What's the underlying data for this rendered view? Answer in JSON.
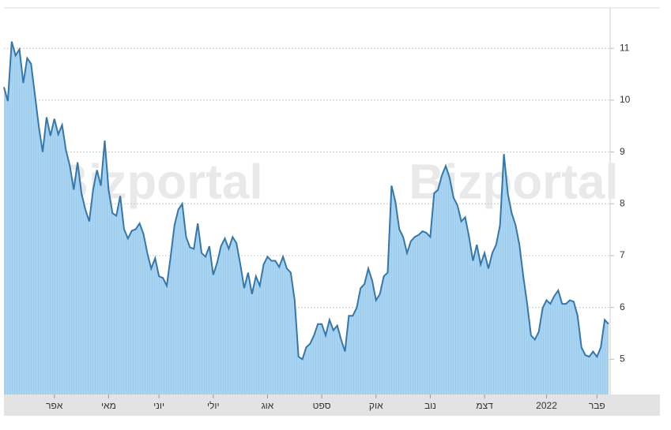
{
  "chart_data": {
    "type": "area",
    "watermark": "Bizportal",
    "values": [
      10.25,
      9.98,
      11.13,
      10.86,
      10.98,
      10.33,
      10.81,
      10.7,
      10.1,
      9.49,
      9.0,
      9.67,
      9.31,
      9.64,
      9.34,
      9.52,
      9.03,
      8.73,
      8.27,
      8.8,
      8.2,
      7.89,
      7.66,
      8.27,
      8.65,
      8.35,
      9.22,
      8.27,
      7.82,
      7.77,
      8.15,
      7.51,
      7.33,
      7.48,
      7.51,
      7.62,
      7.42,
      7.05,
      6.75,
      6.95,
      6.6,
      6.57,
      6.42,
      6.98,
      7.59,
      7.89,
      8.0,
      7.36,
      7.16,
      7.13,
      7.62,
      7.05,
      6.98,
      7.18,
      6.63,
      6.86,
      7.18,
      7.33,
      7.13,
      7.36,
      7.24,
      6.83,
      6.37,
      6.67,
      6.26,
      6.6,
      6.42,
      6.83,
      6.98,
      6.9,
      6.9,
      6.78,
      6.98,
      6.75,
      6.67,
      6.14,
      5.05,
      5.0,
      5.23,
      5.3,
      5.46,
      5.68,
      5.68,
      5.46,
      5.76,
      5.56,
      5.65,
      5.38,
      5.15,
      5.84,
      5.84,
      5.99,
      6.37,
      6.45,
      6.75,
      6.52,
      6.14,
      6.26,
      6.6,
      6.67,
      8.35,
      8.04,
      7.51,
      7.36,
      7.05,
      7.28,
      7.36,
      7.4,
      7.47,
      7.44,
      7.36,
      8.2,
      8.27,
      8.55,
      8.73,
      8.5,
      8.12,
      7.97,
      7.66,
      7.74,
      7.36,
      6.9,
      7.21,
      6.83,
      7.05,
      6.75,
      7.05,
      7.21,
      7.59,
      8.96,
      8.2,
      7.82,
      7.59,
      7.21,
      6.6,
      6.07,
      5.46,
      5.38,
      5.53,
      5.99,
      6.14,
      6.07,
      6.22,
      6.33,
      6.07,
      6.07,
      6.14,
      6.11,
      5.84,
      5.23,
      5.08,
      5.05,
      5.15,
      5.05,
      5.23,
      5.76,
      5.68
    ],
    "color": "#3577aa",
    "fill": "#a9d5f2",
    "ylim": [
      4.32,
      11.78
    ],
    "yticks": [
      5,
      6,
      7,
      8,
      9,
      10,
      11
    ],
    "grid": true,
    "xticks": [
      {
        "value": 13,
        "label": "אפר"
      },
      {
        "value": 27,
        "label": "מאי"
      },
      {
        "value": 40,
        "label": "יוני"
      },
      {
        "value": 54,
        "label": "יולי"
      },
      {
        "value": 68,
        "label": "אוג"
      },
      {
        "value": 82,
        "label": "ספט"
      },
      {
        "value": 96,
        "label": "אוק"
      },
      {
        "value": 110,
        "label": "נוב"
      },
      {
        "value": 124,
        "label": "דצמ"
      },
      {
        "value": 140,
        "label": "2022"
      },
      {
        "value": 153,
        "label": "פבר"
      }
    ]
  }
}
